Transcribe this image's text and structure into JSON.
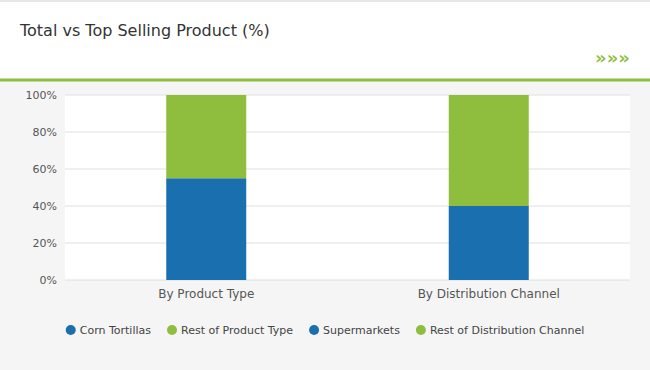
{
  "chart_data": {
    "type": "bar",
    "stacked": true,
    "title": "Total vs Top Selling Product (%)",
    "annotations": [
      "»»»"
    ],
    "categories": [
      "By Product Type",
      "By Distribution Channel"
    ],
    "series": [
      {
        "name": "Corn Tortillas",
        "color": "#1a6faf",
        "values": [
          55,
          null
        ]
      },
      {
        "name": "Rest of Product Type",
        "color": "#8fbe3f",
        "values": [
          45,
          null
        ]
      },
      {
        "name": "Supermarkets",
        "color": "#1a6faf",
        "values": [
          null,
          40
        ]
      },
      {
        "name": "Rest of Distribution Channel",
        "color": "#8fbe3f",
        "values": [
          null,
          60
        ]
      }
    ],
    "ylim": [
      0,
      100
    ],
    "yticks": [
      {
        "value": 0,
        "label": "0%"
      },
      {
        "value": 20,
        "label": "20%"
      },
      {
        "value": 40,
        "label": "40%"
      },
      {
        "value": 60,
        "label": "60%"
      },
      {
        "value": 80,
        "label": "80%"
      },
      {
        "value": 100,
        "label": "100%"
      }
    ],
    "grid": true,
    "legend": "bottom"
  }
}
